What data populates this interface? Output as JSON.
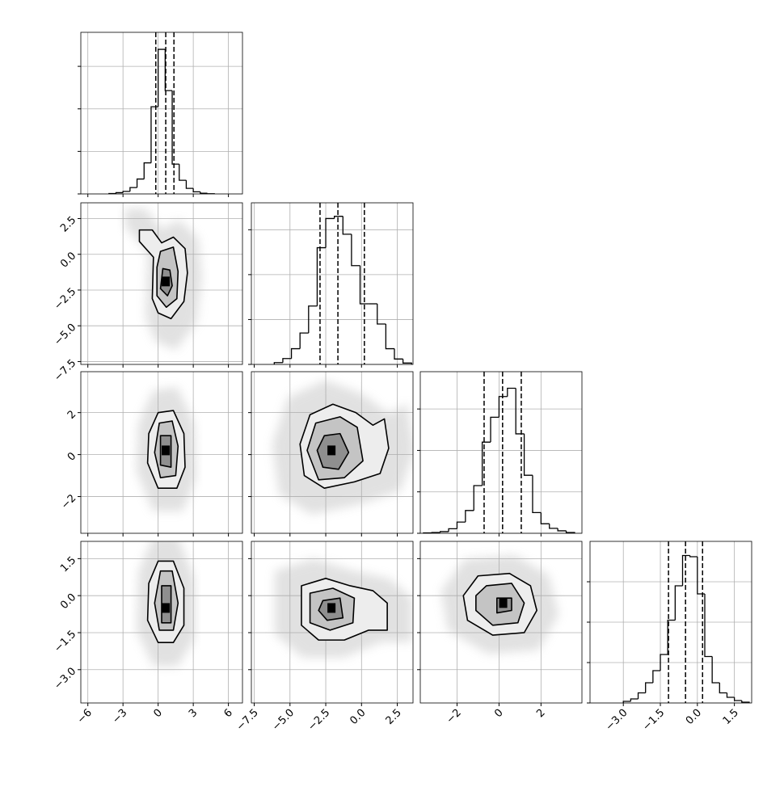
{
  "chart_data": {
    "type": "corner",
    "params": [
      {
        "lim": [
          -6.6,
          7.2
        ],
        "ticks": [
          {
            "value": -6,
            "label": "−6"
          },
          {
            "value": -3,
            "label": "−3"
          },
          0,
          3,
          6
        ],
        "bins": [
          -4.2,
          -3.6,
          -3.0,
          -2.4,
          -1.8,
          -1.2,
          -0.6,
          0,
          0.6,
          1.2,
          1.8,
          2.4,
          3.0,
          3.6,
          4.2,
          4.8
        ],
        "counts": [
          10,
          30,
          60,
          150,
          350,
          730,
          2050,
          3400,
          2430,
          700,
          320,
          130,
          50,
          15,
          5
        ],
        "quantiles": [
          -0.2,
          0.65,
          1.35
        ],
        "hist_ylim": [
          0,
          3800
        ],
        "hist_yticks": [
          0,
          1000,
          2000,
          3000
        ]
      },
      {
        "lim": [
          -7.7,
          3.6
        ],
        "ticks": [
          {
            "value": -7.5,
            "label": "−7.5"
          },
          {
            "value": -5,
            "label": "−5.0"
          },
          {
            "value": -2.5,
            "label": "−2.5"
          },
          {
            "value": 0,
            "label": "0.0"
          },
          2.5
        ],
        "bins": [
          -6.1,
          -5.5,
          -4.9,
          -4.3,
          -3.7,
          -3.1,
          -2.5,
          -1.9,
          -1.3,
          -0.7,
          -0.1,
          0.5,
          1.1,
          1.7,
          2.3,
          2.9,
          3.5
        ],
        "counts": [
          40,
          130,
          350,
          700,
          1300,
          2600,
          3250,
          3300,
          2900,
          2200,
          1350,
          1350,
          900,
          350,
          120,
          30
        ],
        "quantiles": [
          -2.9,
          -1.65,
          0.2
        ],
        "hist_ylim": [
          0,
          3600
        ],
        "hist_yticks": [
          0,
          1000,
          2000,
          3000
        ]
      },
      {
        "lim": [
          -3.75,
          3.95
        ],
        "ticks": [
          {
            "value": -2,
            "label": "−2"
          },
          0,
          2
        ],
        "bins": [
          -3.6,
          -3.2,
          -2.8,
          -2.4,
          -2.0,
          -1.6,
          -1.2,
          -0.8,
          -0.4,
          0,
          0.4,
          0.8,
          1.2,
          1.6,
          2.0,
          2.4,
          2.8,
          3.2,
          3.6
        ],
        "counts": [
          10,
          20,
          40,
          110,
          270,
          550,
          1150,
          2200,
          2800,
          3300,
          3500,
          2400,
          1400,
          500,
          230,
          120,
          60,
          20
        ],
        "quantiles": [
          -0.71,
          0.17,
          1.06
        ],
        "hist_ylim": [
          0,
          3900
        ],
        "hist_yticks": [
          0,
          1000,
          2000,
          3000
        ]
      },
      {
        "lim": [
          -4.35,
          2.2
        ],
        "ticks": [
          {
            "value": -3,
            "label": "−3.0"
          },
          {
            "value": -1.5,
            "label": "−1.5"
          },
          {
            "value": 0,
            "label": "0.0"
          },
          1.5
        ],
        "bins": [
          -3.0,
          -2.7,
          -2.4,
          -2.1,
          -1.8,
          -1.5,
          -1.2,
          -0.9,
          -0.6,
          -0.3,
          0.0,
          0.3,
          0.6,
          0.9,
          1.2,
          1.5,
          1.8,
          2.1
        ],
        "counts": [
          40,
          100,
          250,
          500,
          800,
          1200,
          2050,
          2900,
          3650,
          3620,
          2700,
          1150,
          500,
          250,
          140,
          60,
          20
        ],
        "quantiles": [
          -1.17,
          -0.48,
          0.21
        ],
        "hist_ylim": [
          0,
          4000
        ],
        "hist_yticks": [
          0,
          1000,
          2000,
          3000
        ]
      }
    ],
    "panels": [
      [
        {
          "peak": [
            0.65,
            -1.9
          ],
          "contours": [
            [
              [
                -1.6,
                1.7
              ],
              [
                -0.5,
                1.7
              ],
              [
                0.3,
                0.8
              ],
              [
                1.3,
                1.2
              ],
              [
                2.3,
                0.4
              ],
              [
                2.5,
                -1.3
              ],
              [
                2.2,
                -3.3
              ],
              [
                1.1,
                -4.5
              ],
              [
                0.0,
                -4.1
              ],
              [
                -0.5,
                -3.1
              ],
              [
                -0.4,
                -0.2
              ],
              [
                -1.6,
                0.9
              ]
            ],
            [
              [
                0.2,
                0.2
              ],
              [
                1.3,
                0.5
              ],
              [
                1.7,
                -1.2
              ],
              [
                1.6,
                -3.1
              ],
              [
                0.7,
                -3.7
              ],
              [
                -0.1,
                -2.9
              ],
              [
                -0.1,
                -0.9
              ]
            ],
            [
              [
                0.4,
                -1.0
              ],
              [
                1.0,
                -1.1
              ],
              [
                1.2,
                -2.2
              ],
              [
                0.8,
                -2.9
              ],
              [
                0.2,
                -2.4
              ]
            ]
          ]
        }
      ],
      [
        {
          "peak": [
            0.65,
            0.2
          ],
          "contours": [
            [
              [
                0.0,
                2.0
              ],
              [
                1.3,
                2.1
              ],
              [
                2.2,
                1.0
              ],
              [
                2.3,
                -0.6
              ],
              [
                1.6,
                -1.6
              ],
              [
                0.0,
                -1.6
              ],
              [
                -0.9,
                -0.4
              ],
              [
                -0.8,
                1.0
              ]
            ],
            [
              [
                0.1,
                1.5
              ],
              [
                1.2,
                1.6
              ],
              [
                1.7,
                0.4
              ],
              [
                1.5,
                -1.0
              ],
              [
                0.2,
                -1.1
              ],
              [
                -0.3,
                0.1
              ]
            ],
            [
              [
                0.2,
                0.9
              ],
              [
                1.1,
                0.9
              ],
              [
                1.1,
                -0.6
              ],
              [
                0.2,
                -0.5
              ]
            ]
          ]
        },
        {
          "peak": [
            -2.1,
            0.2
          ],
          "contours": [
            [
              [
                -3.6,
                1.9
              ],
              [
                -2.0,
                2.4
              ],
              [
                -0.4,
                2.0
              ],
              [
                0.8,
                1.4
              ],
              [
                1.6,
                1.7
              ],
              [
                1.9,
                0.3
              ],
              [
                1.3,
                -0.9
              ],
              [
                -0.5,
                -1.3
              ],
              [
                -2.6,
                -1.6
              ],
              [
                -4.0,
                -1.0
              ],
              [
                -4.3,
                0.5
              ]
            ],
            [
              [
                -3.2,
                1.5
              ],
              [
                -1.5,
                1.8
              ],
              [
                -0.3,
                1.3
              ],
              [
                0.1,
                -0.3
              ],
              [
                -1.2,
                -1.1
              ],
              [
                -3.0,
                -1.2
              ],
              [
                -3.8,
                0.2
              ]
            ],
            [
              [
                -2.6,
                0.9
              ],
              [
                -1.5,
                1.0
              ],
              [
                -0.9,
                0.1
              ],
              [
                -1.6,
                -0.7
              ],
              [
                -2.7,
                -0.6
              ],
              [
                -3.1,
                0.2
              ]
            ]
          ]
        }
      ],
      [
        {
          "peak": [
            0.65,
            -0.5
          ],
          "contours": [
            [
              [
                0.0,
                1.4
              ],
              [
                1.3,
                1.4
              ],
              [
                2.2,
                0.3
              ],
              [
                2.2,
                -1.2
              ],
              [
                1.3,
                -1.9
              ],
              [
                0.0,
                -1.9
              ],
              [
                -0.9,
                -1.0
              ],
              [
                -0.8,
                0.5
              ]
            ],
            [
              [
                0.2,
                1.0
              ],
              [
                1.2,
                1.0
              ],
              [
                1.7,
                -0.3
              ],
              [
                1.3,
                -1.4
              ],
              [
                0.1,
                -1.4
              ],
              [
                -0.3,
                -0.3
              ]
            ],
            [
              [
                0.3,
                0.4
              ],
              [
                1.1,
                0.4
              ],
              [
                1.1,
                -1.1
              ],
              [
                0.3,
                -1.1
              ]
            ]
          ]
        },
        {
          "peak": [
            -2.1,
            -0.5
          ],
          "contours": [
            [
              [
                -4.2,
                0.4
              ],
              [
                -2.5,
                0.7
              ],
              [
                -0.8,
                0.4
              ],
              [
                0.8,
                0.2
              ],
              [
                1.8,
                -0.3
              ],
              [
                1.8,
                -1.4
              ],
              [
                0.5,
                -1.4
              ],
              [
                -1.2,
                -1.8
              ],
              [
                -3.0,
                -1.8
              ],
              [
                -4.2,
                -1.2
              ]
            ],
            [
              [
                -3.6,
                0.1
              ],
              [
                -2.0,
                0.3
              ],
              [
                -0.5,
                -0.1
              ],
              [
                -0.6,
                -1.1
              ],
              [
                -2.2,
                -1.4
              ],
              [
                -3.6,
                -1.1
              ]
            ],
            [
              [
                -2.7,
                -0.2
              ],
              [
                -1.5,
                -0.1
              ],
              [
                -1.3,
                -0.9
              ],
              [
                -2.4,
                -1.0
              ],
              [
                -3.0,
                -0.6
              ]
            ]
          ]
        },
        {
          "peak": [
            0.2,
            -0.3
          ],
          "contours": [
            [
              [
                -1.0,
                0.8
              ],
              [
                0.5,
                0.9
              ],
              [
                1.5,
                0.4
              ],
              [
                1.8,
                -0.6
              ],
              [
                1.2,
                -1.5
              ],
              [
                -0.3,
                -1.6
              ],
              [
                -1.5,
                -1.0
              ],
              [
                -1.7,
                0.0
              ]
            ],
            [
              [
                -0.6,
                0.4
              ],
              [
                0.6,
                0.5
              ],
              [
                1.2,
                -0.3
              ],
              [
                0.9,
                -1.1
              ],
              [
                -0.3,
                -1.2
              ],
              [
                -1.1,
                -0.6
              ],
              [
                -1.1,
                0.0
              ]
            ],
            [
              [
                -0.1,
                -0.1
              ],
              [
                0.6,
                -0.1
              ],
              [
                0.6,
                -0.6
              ],
              [
                -0.1,
                -0.7
              ]
            ]
          ]
        }
      ]
    ]
  }
}
